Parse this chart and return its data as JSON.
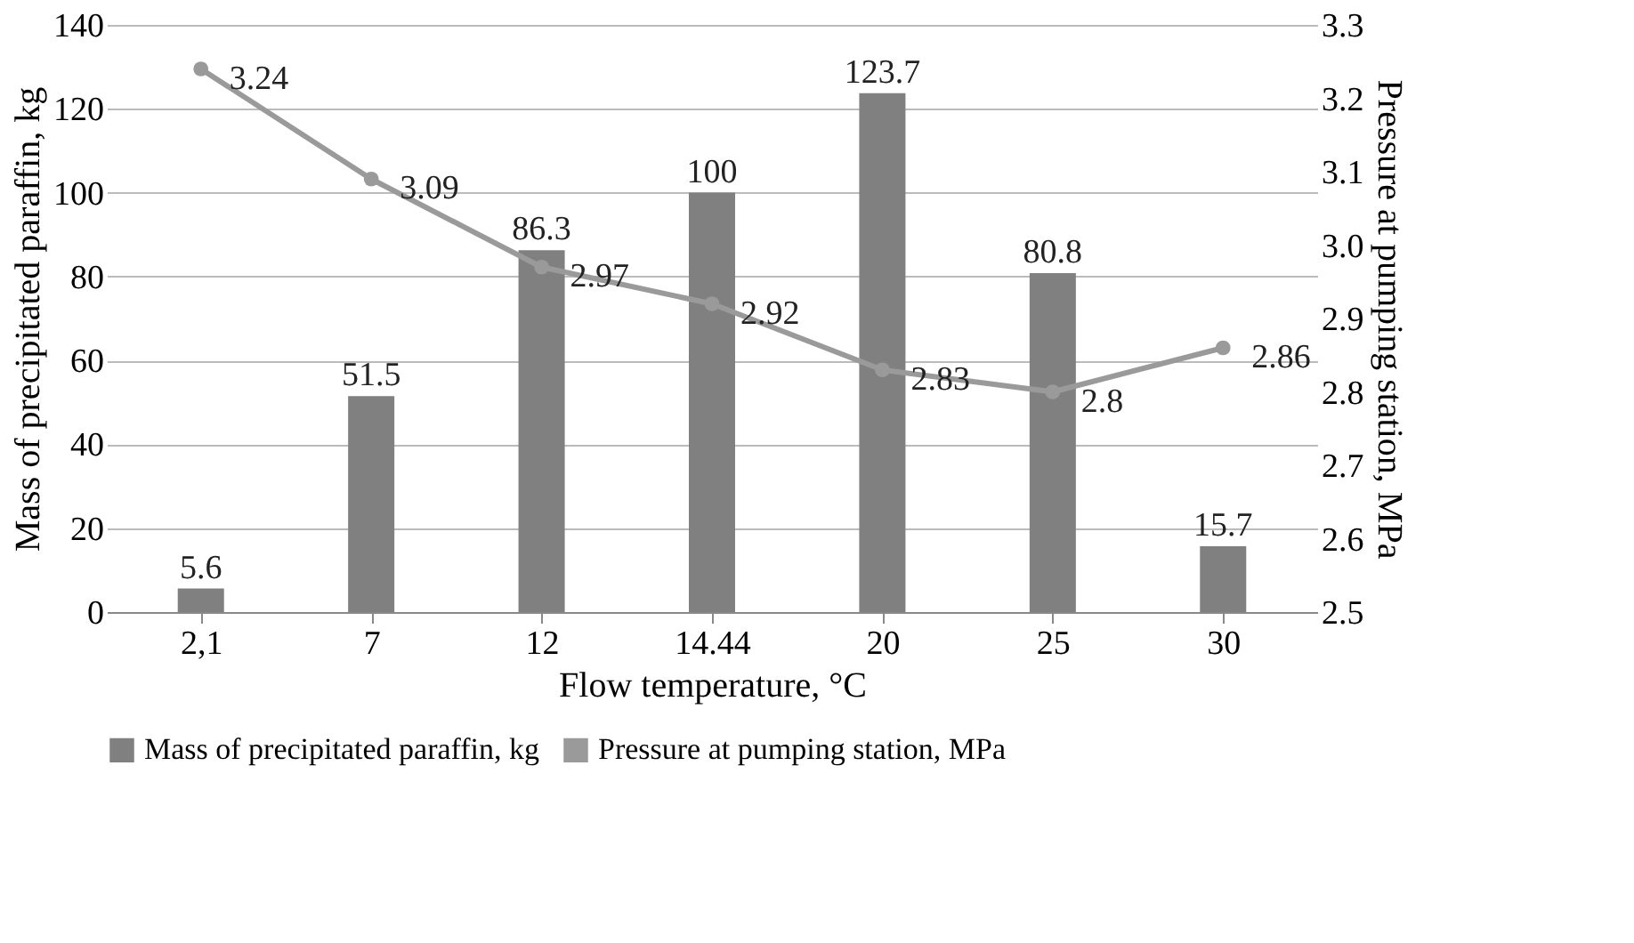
{
  "chart_data": {
    "type": "bar",
    "xlabel": "Flow temperature, °C",
    "ylabel": "Mass of precipitated paraffin, kg",
    "y2label": "Pressure at pumping station, MPa",
    "categories": [
      "2,1",
      "7",
      "12",
      "14.44",
      "20",
      "25",
      "30"
    ],
    "series": [
      {
        "name": "Mass of precipitated paraffin, kg",
        "color": "#808080",
        "values": [
          5.6,
          51.5,
          86.3,
          100,
          123.7,
          80.8,
          15.7
        ]
      },
      {
        "name": "Pressure at pumping station, MPa",
        "type": "line",
        "axis": "y2",
        "color": "#9a9a9a",
        "marker": "circle",
        "values": [
          3.24,
          3.09,
          2.97,
          2.92,
          2.83,
          2.8,
          2.86
        ]
      }
    ],
    "ylim": [
      0,
      140
    ],
    "yticks": [
      0,
      20,
      40,
      60,
      80,
      100,
      120,
      140
    ],
    "y2lim": [
      2.5,
      3.3
    ],
    "y2ticks": [
      2.5,
      2.6,
      2.7,
      2.8,
      2.9,
      {
        "value": 3.0,
        "label": "3.0"
      },
      3.1,
      3.2,
      3.3
    ],
    "grid": "y",
    "legend": "bottom",
    "data_labels": true
  }
}
